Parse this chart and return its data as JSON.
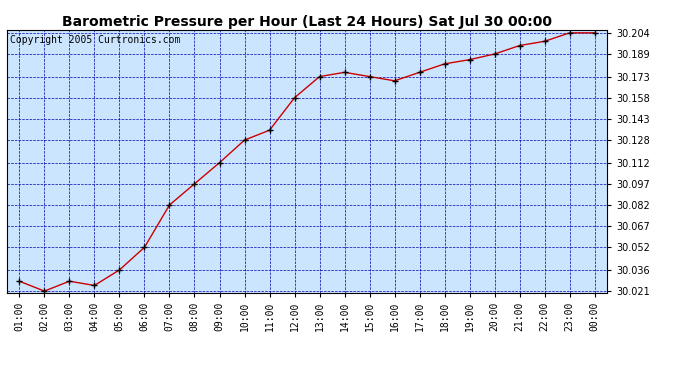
{
  "title": "Barometric Pressure per Hour (Last 24 Hours) Sat Jul 30 00:00",
  "copyright": "Copyright 2005 Curtronics.com",
  "x_labels": [
    "01:00",
    "02:00",
    "03:00",
    "04:00",
    "05:00",
    "06:00",
    "07:00",
    "08:00",
    "09:00",
    "10:00",
    "11:00",
    "12:00",
    "13:00",
    "14:00",
    "15:00",
    "16:00",
    "17:00",
    "18:00",
    "19:00",
    "20:00",
    "21:00",
    "22:00",
    "23:00",
    "00:00"
  ],
  "y_values": [
    30.028,
    30.021,
    30.028,
    30.025,
    30.036,
    30.052,
    30.082,
    30.097,
    30.112,
    30.128,
    30.135,
    30.158,
    30.173,
    30.176,
    30.173,
    30.17,
    30.176,
    30.182,
    30.185,
    30.189,
    30.195,
    30.198,
    30.204,
    30.204
  ],
  "y_min": 30.021,
  "y_max": 30.204,
  "y_ticks": [
    30.021,
    30.036,
    30.052,
    30.067,
    30.082,
    30.097,
    30.112,
    30.128,
    30.143,
    30.158,
    30.173,
    30.189,
    30.204
  ],
  "line_color": "#cc0000",
  "marker_color": "#000000",
  "bg_color": "#cce5ff",
  "grid_color_major": "#0000aa",
  "grid_color_minor": "#8888cc",
  "title_fontsize": 10,
  "copyright_fontsize": 7,
  "tick_fontsize": 7
}
